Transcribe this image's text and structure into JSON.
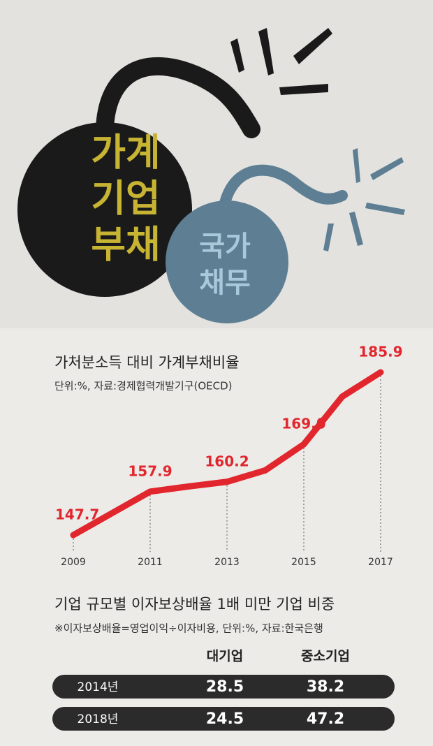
{
  "illustration": {
    "big_bomb": [
      "가계",
      "기업",
      "부채"
    ],
    "small_bomb": [
      "국가",
      "채무"
    ]
  },
  "chart_data": {
    "type": "line",
    "title": "가처분소득 대비 가계부채비율",
    "subtitle": "단위:%, 자료:경제협력개발기구(OECD)",
    "categories": [
      "2009",
      null,
      "2011",
      null,
      "2013",
      null,
      "2015",
      null,
      "2017"
    ],
    "values": [
      147.7,
      152.8,
      157.9,
      159.1,
      160.2,
      162.9,
      169.0,
      180.2,
      185.9
    ],
    "value_labels": [
      "147.7",
      null,
      "157.9",
      null,
      "160.2",
      null,
      "169.0",
      null,
      "185.9"
    ],
    "color": "#e2262d"
  },
  "table": {
    "title": "기업 규모별 이자보상배율 1배 미만 기업 비중",
    "note": "※이자보상배율=영업이익÷이자비용, 단위:%, 자료:한국은행",
    "columns": [
      "대기업",
      "중소기업"
    ],
    "rows": [
      [
        "2014년",
        "28.5",
        "38.2"
      ],
      [
        "2018년",
        "24.5",
        "47.2"
      ]
    ]
  }
}
